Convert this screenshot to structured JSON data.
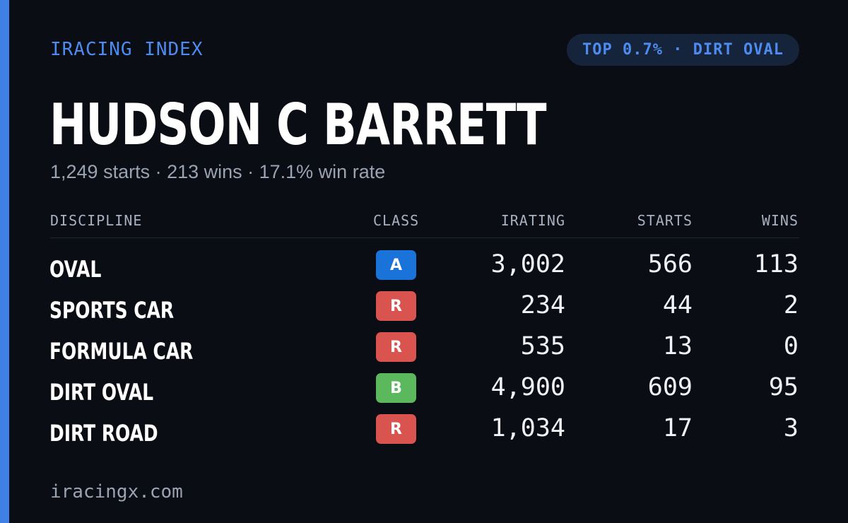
{
  "brand": "IRACING INDEX",
  "badge_text": "TOP 0.7% · DIRT OVAL",
  "driver_name": "HUDSON C BARRETT",
  "summary": "1,249 starts · 213 wins · 17.1% win rate",
  "table": {
    "headers": {
      "discipline": "DISCIPLINE",
      "class": "CLASS",
      "irating": "IRATING",
      "starts": "STARTS",
      "wins": "WINS"
    },
    "rows": [
      {
        "discipline": "OVAL",
        "class": "A",
        "class_color": "#1a73d9",
        "irating": "3,002",
        "starts": "566",
        "wins": "113"
      },
      {
        "discipline": "SPORTS CAR",
        "class": "R",
        "class_color": "#d9534f",
        "irating": "234",
        "starts": "44",
        "wins": "2"
      },
      {
        "discipline": "FORMULA CAR",
        "class": "R",
        "class_color": "#d9534f",
        "irating": "535",
        "starts": "13",
        "wins": "0"
      },
      {
        "discipline": "DIRT OVAL",
        "class": "B",
        "class_color": "#5cb85c",
        "irating": "4,900",
        "starts": "609",
        "wins": "95"
      },
      {
        "discipline": "DIRT ROAD",
        "class": "R",
        "class_color": "#d9534f",
        "irating": "1,034",
        "starts": "17",
        "wins": "3"
      }
    ]
  },
  "footer": "iracingx.com",
  "colors": {
    "accent": "#3f7fe6",
    "background": "#0a0d14"
  }
}
